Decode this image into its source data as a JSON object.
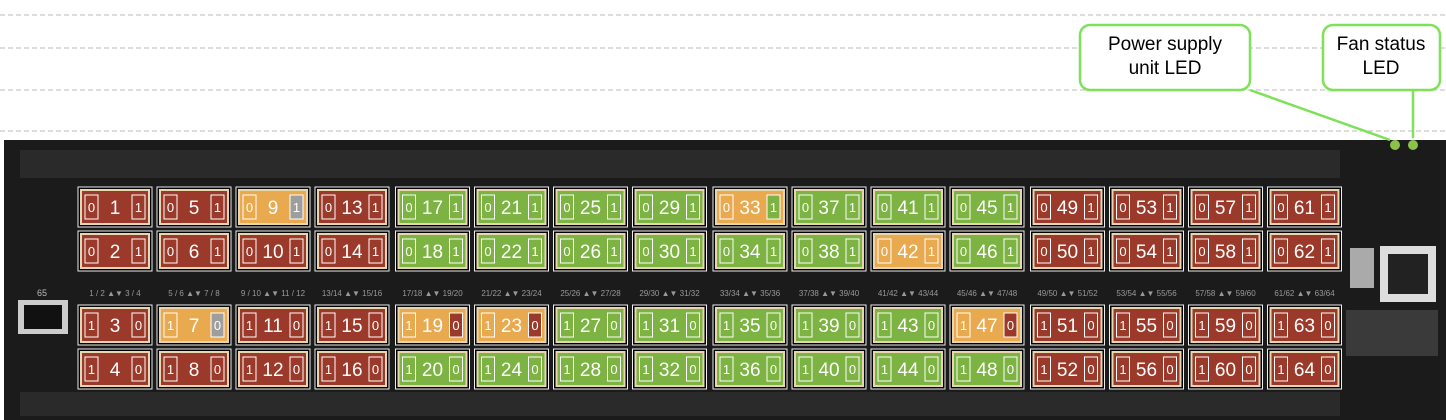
{
  "callouts": [
    {
      "label": "Power supply\nunit LED"
    },
    {
      "label": "Fan status\nLED"
    }
  ],
  "sfp_label": "65",
  "port_labels": [
    "1 / 2 ▲▼ 3 / 4",
    "5 / 6 ▲▼ 7 / 8",
    "9 / 10 ▲▼ 11 / 12",
    "13/14 ▲▼ 15/16",
    "17/18 ▲▼ 19/20",
    "21/22 ▲▼ 23/24",
    "25/26 ▲▼ 27/28",
    "29/30 ▲▼ 31/32",
    "33/34 ▲▼ 35/36",
    "37/38 ▲▼ 39/40",
    "41/42 ▲▼ 43/44",
    "45/46 ▲▼ 47/48",
    "49/50 ▲▼ 51/52",
    "53/54 ▲▼ 55/56",
    "57/58 ▲▼ 59/60",
    "61/62 ▲▼ 63/64"
  ],
  "ports": [
    {
      "left": 0,
      "number": 1,
      "right": 1,
      "color": "#9b3a2a"
    },
    {
      "left": 0,
      "number": 2,
      "right": 1,
      "color": "#9b3a2a"
    },
    {
      "left": 1,
      "number": 3,
      "right": 0,
      "color": "#9b3a2a"
    },
    {
      "left": 1,
      "number": 4,
      "right": 0,
      "color": "#9b3a2a"
    },
    {
      "left": 0,
      "number": 5,
      "right": 1,
      "color": "#9b3a2a"
    },
    {
      "left": 0,
      "number": 6,
      "right": 1,
      "color": "#9b3a2a"
    },
    {
      "left": 1,
      "number": 7,
      "right": 0,
      "color": "#e9a94f",
      "right_color": "#9e9e9e"
    },
    {
      "left": 1,
      "number": 8,
      "right": 0,
      "color": "#9b3a2a"
    },
    {
      "left": 0,
      "number": 9,
      "right": 1,
      "color": "#e9a94f",
      "right_color": "#9e9e9e"
    },
    {
      "left": 0,
      "number": 10,
      "right": 1,
      "color": "#9b3a2a"
    },
    {
      "left": 1,
      "number": 11,
      "right": 0,
      "color": "#9b3a2a"
    },
    {
      "left": 1,
      "number": 12,
      "right": 0,
      "color": "#9b3a2a"
    },
    {
      "left": 0,
      "number": 13,
      "right": 1,
      "color": "#9b3a2a"
    },
    {
      "left": 0,
      "number": 14,
      "right": 1,
      "color": "#9b3a2a"
    },
    {
      "left": 1,
      "number": 15,
      "right": 0,
      "color": "#9b3a2a"
    },
    {
      "left": 1,
      "number": 16,
      "right": 0,
      "color": "#9b3a2a"
    },
    {
      "left": 0,
      "number": 17,
      "right": 1,
      "color": "#7cb342"
    },
    {
      "left": 0,
      "number": 18,
      "right": 1,
      "color": "#7cb342"
    },
    {
      "left": 1,
      "number": 19,
      "right": 0,
      "color": "#e9a94f",
      "right_color": "#9b3a2a"
    },
    {
      "left": 1,
      "number": 20,
      "right": 0,
      "color": "#7cb342"
    },
    {
      "left": 0,
      "number": 21,
      "right": 1,
      "color": "#7cb342"
    },
    {
      "left": 0,
      "number": 22,
      "right": 1,
      "color": "#7cb342"
    },
    {
      "left": 1,
      "number": 23,
      "right": 0,
      "color": "#e9a94f",
      "right_color": "#9b3a2a"
    },
    {
      "left": 1,
      "number": 24,
      "right": 0,
      "color": "#7cb342"
    },
    {
      "left": 0,
      "number": 25,
      "right": 1,
      "color": "#7cb342"
    },
    {
      "left": 0,
      "number": 26,
      "right": 1,
      "color": "#7cb342"
    },
    {
      "left": 1,
      "number": 27,
      "right": 0,
      "color": "#7cb342"
    },
    {
      "left": 1,
      "number": 28,
      "right": 0,
      "color": "#7cb342"
    },
    {
      "left": 0,
      "number": 29,
      "right": 1,
      "color": "#7cb342"
    },
    {
      "left": 0,
      "number": 30,
      "right": 1,
      "color": "#7cb342"
    },
    {
      "left": 1,
      "number": 31,
      "right": 0,
      "color": "#7cb342"
    },
    {
      "left": 1,
      "number": 32,
      "right": 0,
      "color": "#7cb342"
    },
    {
      "left": 0,
      "number": 33,
      "right": 1,
      "color": "#e9a94f",
      "right_color": "#7cb342"
    },
    {
      "left": 0,
      "number": 34,
      "right": 1,
      "color": "#7cb342"
    },
    {
      "left": 1,
      "number": 35,
      "right": 0,
      "color": "#7cb342"
    },
    {
      "left": 1,
      "number": 36,
      "right": 0,
      "color": "#7cb342"
    },
    {
      "left": 0,
      "number": 37,
      "right": 1,
      "color": "#7cb342"
    },
    {
      "left": 0,
      "number": 38,
      "right": 1,
      "color": "#7cb342"
    },
    {
      "left": 1,
      "number": 39,
      "right": 0,
      "color": "#7cb342"
    },
    {
      "left": 1,
      "number": 40,
      "right": 0,
      "color": "#7cb342"
    },
    {
      "left": 0,
      "number": 41,
      "right": 1,
      "color": "#7cb342"
    },
    {
      "left": 0,
      "number": 42,
      "right": 1,
      "color": "#e9a94f"
    },
    {
      "left": 1,
      "number": 43,
      "right": 0,
      "color": "#7cb342"
    },
    {
      "left": 1,
      "number": 44,
      "right": 0,
      "color": "#7cb342"
    },
    {
      "left": 0,
      "number": 45,
      "right": 1,
      "color": "#7cb342"
    },
    {
      "left": 0,
      "number": 46,
      "right": 1,
      "color": "#7cb342"
    },
    {
      "left": 1,
      "number": 47,
      "right": 0,
      "color": "#e9a94f",
      "right_color": "#9b3a2a"
    },
    {
      "left": 1,
      "number": 48,
      "right": 0,
      "color": "#7cb342"
    },
    {
      "left": 0,
      "number": 49,
      "right": 1,
      "color": "#9b3a2a"
    },
    {
      "left": 0,
      "number": 50,
      "right": 1,
      "color": "#9b3a2a"
    },
    {
      "left": 1,
      "number": 51,
      "right": 0,
      "color": "#9b3a2a"
    },
    {
      "left": 1,
      "number": 52,
      "right": 0,
      "color": "#9b3a2a"
    },
    {
      "left": 0,
      "number": 53,
      "right": 1,
      "color": "#9b3a2a"
    },
    {
      "left": 0,
      "number": 54,
      "right": 1,
      "color": "#9b3a2a"
    },
    {
      "left": 1,
      "number": 55,
      "right": 0,
      "color": "#9b3a2a"
    },
    {
      "left": 1,
      "number": 56,
      "right": 0,
      "color": "#9b3a2a"
    },
    {
      "left": 0,
      "number": 57,
      "right": 1,
      "color": "#9b3a2a"
    },
    {
      "left": 0,
      "number": 58,
      "right": 1,
      "color": "#9b3a2a"
    },
    {
      "left": 1,
      "number": 59,
      "right": 0,
      "color": "#9b3a2a"
    },
    {
      "left": 1,
      "number": 60,
      "right": 0,
      "color": "#9b3a2a"
    },
    {
      "left": 0,
      "number": 61,
      "right": 1,
      "color": "#9b3a2a"
    },
    {
      "left": 0,
      "number": 62,
      "right": 1,
      "color": "#9b3a2a"
    },
    {
      "left": 1,
      "number": 63,
      "right": 0,
      "color": "#9b3a2a"
    },
    {
      "left": 1,
      "number": 64,
      "right": 0,
      "color": "#9b3a2a"
    }
  ]
}
